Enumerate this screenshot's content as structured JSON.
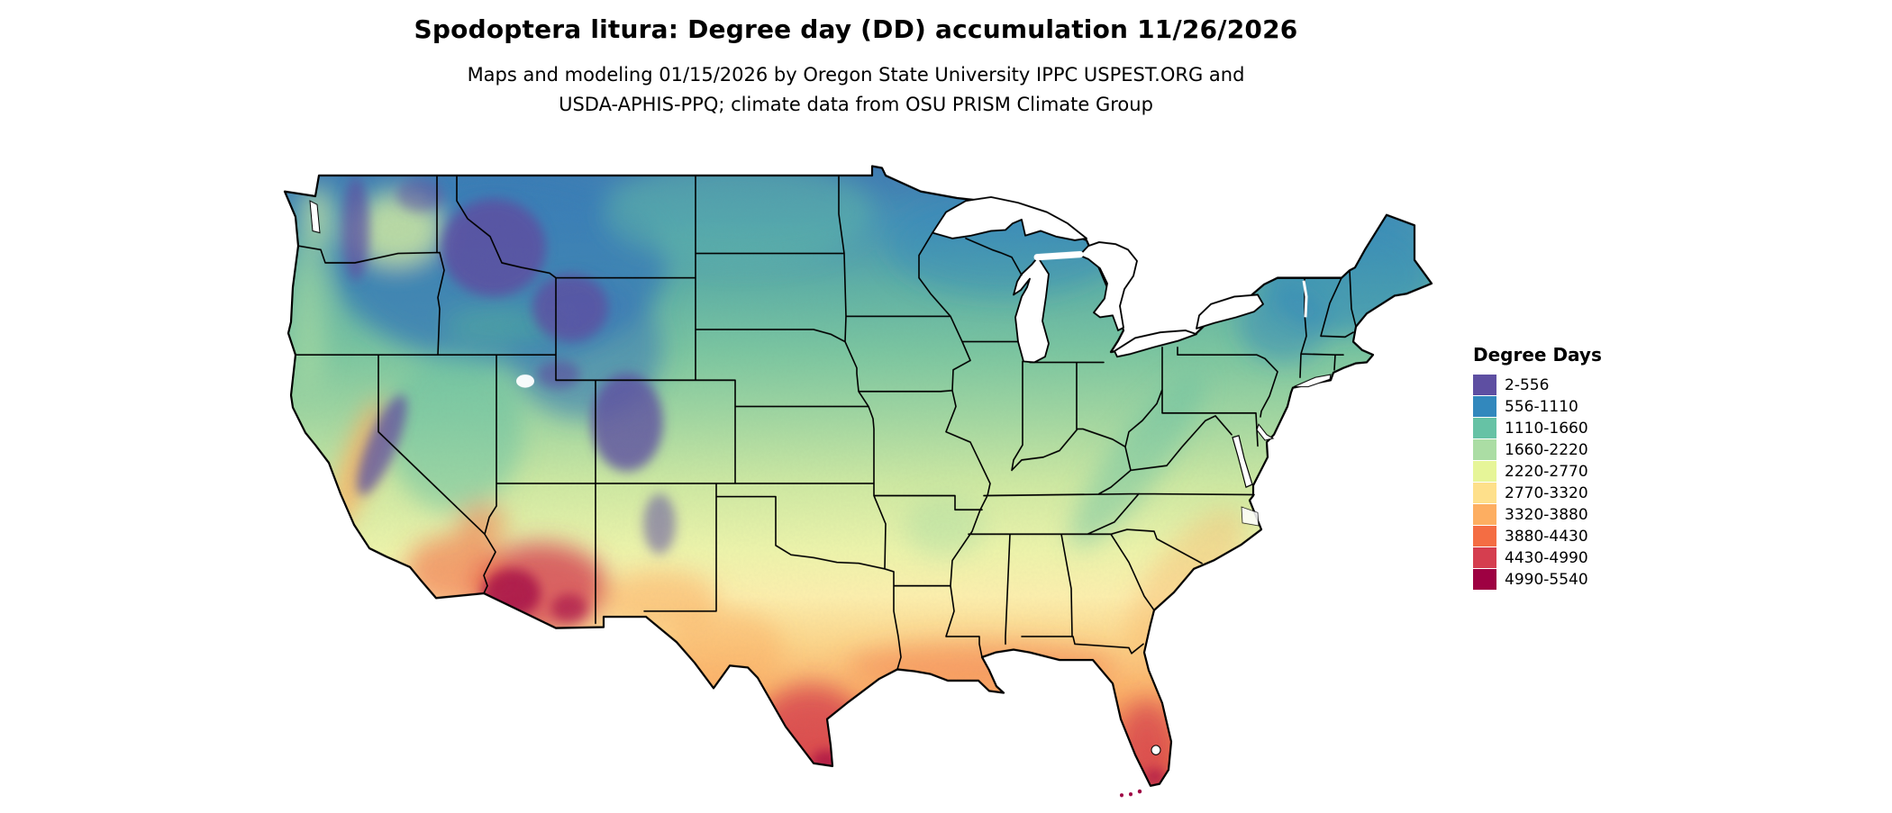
{
  "header": {
    "title": "Spodoptera litura: Degree day (DD) accumulation 11/26/2026",
    "subtitle_line1": "Maps and modeling 01/15/2026 by Oregon State University IPPC USPEST.ORG and",
    "subtitle_line2": "USDA-APHIS-PPQ; climate data from OSU PRISM Climate Group"
  },
  "map": {
    "region": "Contiguous United States"
  },
  "legend": {
    "title": "Degree Days",
    "items": [
      {
        "label": "2-556",
        "color": "#5E4FA2"
      },
      {
        "label": "556-1110",
        "color": "#3288BD"
      },
      {
        "label": "1110-1660",
        "color": "#66C2A5"
      },
      {
        "label": "1660-2220",
        "color": "#ABDDA4"
      },
      {
        "label": "2220-2770",
        "color": "#E6F598"
      },
      {
        "label": "2770-3320",
        "color": "#FEE08B"
      },
      {
        "label": "3320-3880",
        "color": "#FDAE61"
      },
      {
        "label": "3880-4430",
        "color": "#F46D43"
      },
      {
        "label": "4430-4990",
        "color": "#D53E4F"
      },
      {
        "label": "4990-5540",
        "color": "#9E0142"
      }
    ]
  }
}
